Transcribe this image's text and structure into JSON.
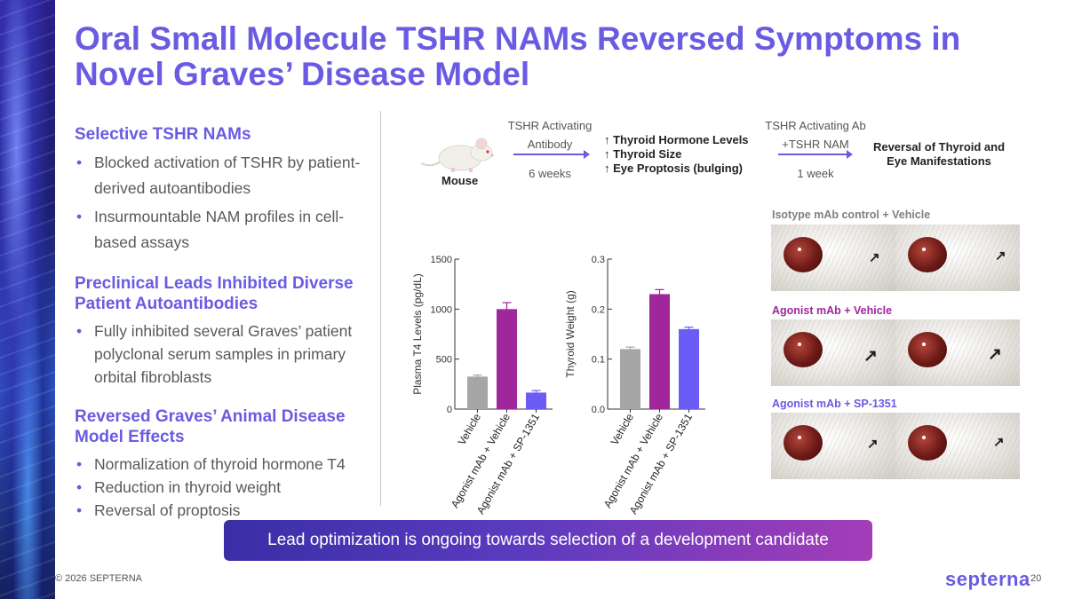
{
  "title": "Oral Small Molecule TSHR NAMs Reversed Symptoms in Novel Graves’ Disease Model",
  "sections": [
    {
      "heading": "Selective TSHR NAMs",
      "bullets": [
        "Blocked activation of TSHR by patient-derived autoantibodies",
        "Insurmountable NAM profiles in cell-based assays"
      ]
    },
    {
      "heading": "Preclinical Leads Inhibited Diverse Patient Autoantibodies",
      "bullets": [
        "Fully inhibited several Graves’ patient polyclonal serum samples in primary orbital fibroblasts"
      ]
    },
    {
      "heading": "Reversed Graves’ Animal Disease Model Effects",
      "bullets": [
        "Normalization of thyroid hormone T4",
        "Reduction in thyroid weight",
        "Reversal of proptosis"
      ]
    }
  ],
  "flow": {
    "mouse_label": "Mouse",
    "step1_top": "TSHR Activating Antibody",
    "step1_bottom": "6 weeks",
    "effects": [
      "↑ Thyroid Hormone Levels",
      "↑ Thyroid Size",
      "↑ Eye Proptosis (bulging)"
    ],
    "step2_top": "TSHR Activating Ab +TSHR NAM",
    "step2_bottom": "1 week",
    "outcome": "Reversal of Thyroid and Eye Manifestations"
  },
  "photo_panels": [
    {
      "label": "Isotype mAb control + Vehicle",
      "color": "#7f7f7f"
    },
    {
      "label": "Agonist mAb + Vehicle",
      "color": "#a0269c"
    },
    {
      "label": "Agonist mAb + SP-1351",
      "color": "#6a5be2"
    }
  ],
  "chart_data": [
    {
      "type": "bar",
      "categories": [
        "Vehicle",
        "Agonist mAb + Vehicle",
        "Agonist mAb + SP-1351"
      ],
      "values": [
        325,
        1000,
        165
      ],
      "errors": [
        15,
        65,
        20
      ],
      "ylabel": "Plasma T4 Levels (pg/dL)",
      "ylim": [
        0,
        1500
      ],
      "yticks": [
        0,
        500,
        1000,
        1500
      ],
      "ytick_labels": [
        "0",
        "500",
        "1000",
        "1500"
      ],
      "colors": [
        "#a6a6a6",
        "#a0269c",
        "#6b5cf5"
      ]
    },
    {
      "type": "bar",
      "categories": [
        "Vehicle",
        "Agonist mAb + Vehicle",
        "Agonist mAb + SP-1351"
      ],
      "values": [
        0.12,
        0.23,
        0.16
      ],
      "errors": [
        0.004,
        0.009,
        0.004
      ],
      "ylabel": "Thyroid Weight (g)",
      "ylim": [
        0,
        0.3
      ],
      "yticks": [
        0,
        0.1,
        0.2,
        0.3
      ],
      "ytick_labels": [
        "0.0",
        "0.1",
        "0.2",
        "0.3"
      ],
      "colors": [
        "#a6a6a6",
        "#a0269c",
        "#6b5cf5"
      ]
    }
  ],
  "banner": "Lead optimization is ongoing towards selection of a development candidate",
  "footer": {
    "copyright": "© 2026 SEPTERNA",
    "logo": "septerna",
    "page": "20"
  }
}
